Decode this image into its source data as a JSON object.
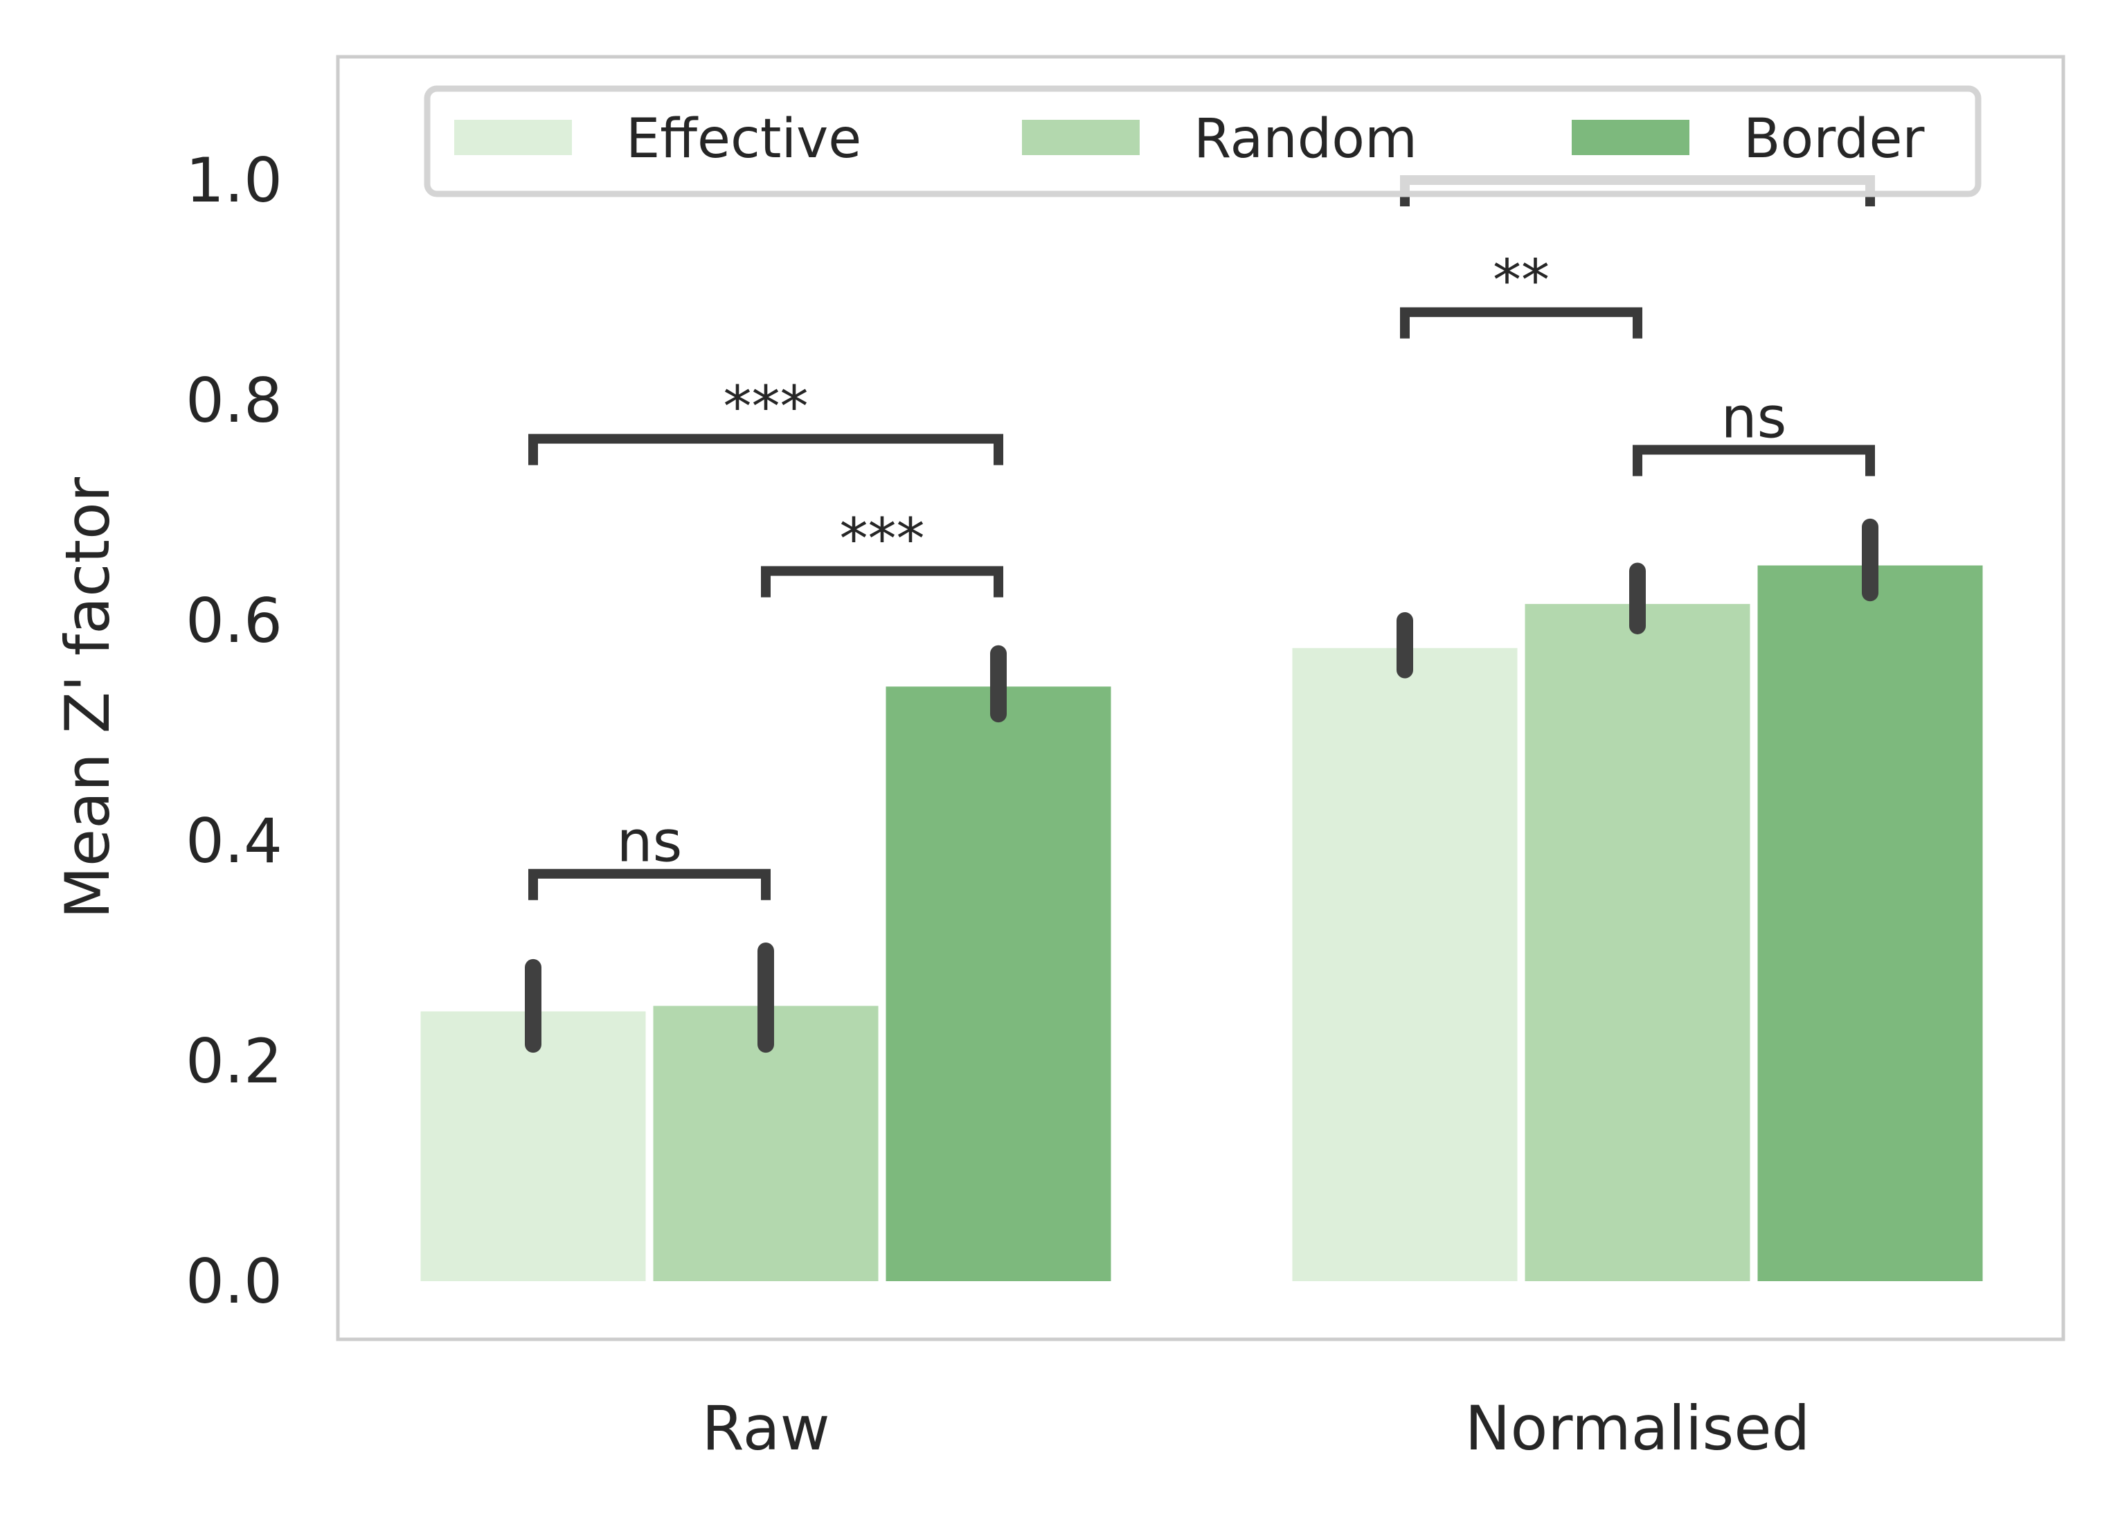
{
  "chart_data": {
    "type": "bar",
    "ylabel": "Mean Z' factor",
    "xlabel": "",
    "ylim": [
      0,
      1.1
    ],
    "yticks": [
      "0.0",
      "0.2",
      "0.4",
      "0.6",
      "0.8",
      "1.0"
    ],
    "grid": false,
    "legend_position": "top",
    "categories": [
      "Raw",
      "Normalised"
    ],
    "series": [
      {
        "name": "Effective",
        "color": "#ddefda",
        "values": [
          0.245,
          0.575
        ],
        "ci": [
          [
            0.215,
            0.285
          ],
          [
            0.555,
            0.6
          ]
        ]
      },
      {
        "name": "Random",
        "color": "#b3d8ae",
        "values": [
          0.25,
          0.615
        ],
        "ci": [
          [
            0.215,
            0.3
          ],
          [
            0.595,
            0.645
          ]
        ]
      },
      {
        "name": "Border",
        "color": "#7db97d",
        "values": [
          0.54,
          0.65
        ],
        "ci": [
          [
            0.515,
            0.57
          ],
          [
            0.625,
            0.685
          ]
        ]
      }
    ],
    "significance": [
      {
        "category": 0,
        "from": 0,
        "to": 1,
        "y": 0.37,
        "label": "ns"
      },
      {
        "category": 0,
        "from": 1,
        "to": 2,
        "y": 0.645,
        "label": "***"
      },
      {
        "category": 0,
        "from": 0,
        "to": 2,
        "y": 0.765,
        "label": "***"
      },
      {
        "category": 1,
        "from": 0,
        "to": 1,
        "y": 0.88,
        "label": "**"
      },
      {
        "category": 1,
        "from": 1,
        "to": 2,
        "y": 0.755,
        "label": "ns"
      },
      {
        "category": 1,
        "from": 0,
        "to": 2,
        "y": 1.0,
        "label": "***"
      }
    ]
  }
}
